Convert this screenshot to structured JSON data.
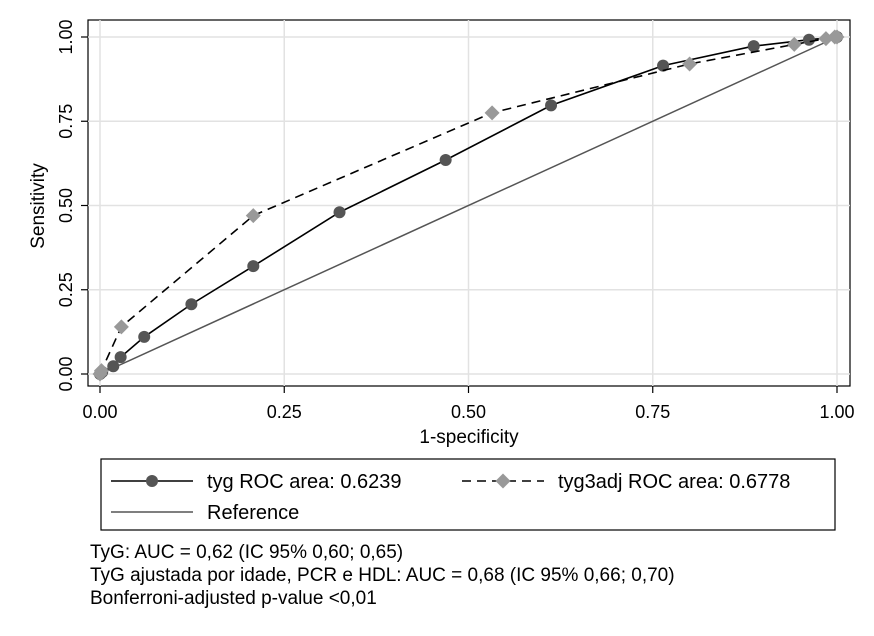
{
  "chart_data": {
    "type": "line",
    "title": "",
    "xlabel": "1-specificity",
    "ylabel": "Sensitivity",
    "xlim": [
      0,
      1
    ],
    "ylim": [
      0,
      1
    ],
    "x_ticks": [
      "0.00",
      "0.25",
      "0.50",
      "0.75",
      "1.00"
    ],
    "y_ticks": [
      "0.00",
      "0.25",
      "0.50",
      "0.75",
      "1.00"
    ],
    "grid": true,
    "legend_position": "bottom",
    "series": [
      {
        "name": "tyg ROC area: 0.6239",
        "style": "solid",
        "marker": "circle",
        "color": "#555555",
        "x": [
          0.0,
          0.003,
          0.018,
          0.028,
          0.06,
          0.124,
          0.208,
          0.325,
          0.469,
          0.612,
          0.764,
          0.887,
          0.962,
          1.0
        ],
        "y": [
          0.0,
          0.006,
          0.023,
          0.05,
          0.11,
          0.207,
          0.32,
          0.48,
          0.635,
          0.797,
          0.915,
          0.973,
          0.992,
          1.0
        ]
      },
      {
        "name": "tyg3adj ROC area: 0.6778",
        "style": "dashed",
        "marker": "diamond",
        "color": "#999999",
        "x": [
          0.0,
          0.002,
          0.029,
          0.208,
          0.532,
          0.8,
          0.942,
          0.985,
          0.997,
          1.0
        ],
        "y": [
          0.0,
          0.01,
          0.14,
          0.47,
          0.775,
          0.92,
          0.978,
          0.995,
          1.0,
          1.0
        ]
      },
      {
        "name": "Reference",
        "style": "solid",
        "marker": "none",
        "color": "#555555",
        "x": [
          0,
          1
        ],
        "y": [
          0,
          1
        ]
      }
    ]
  },
  "notes": [
    "TyG: AUC = 0,62 (IC 95% 0,60; 0,65)",
    "TyG ajustada por idade, PCR e HDL: AUC = 0,68 (IC 95% 0,66; 0,70)",
    "Bonferroni-adjusted p-value <0,01"
  ]
}
